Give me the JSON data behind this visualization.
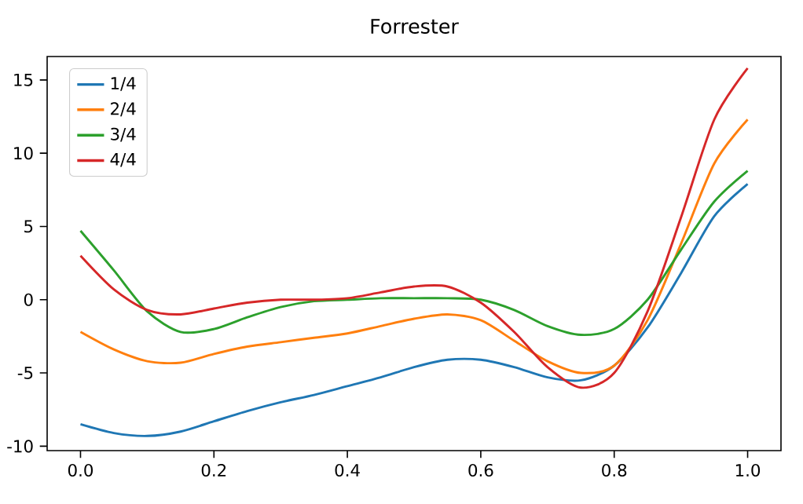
{
  "chart_data": {
    "type": "line",
    "title": "Forrester",
    "x": [
      0,
      0.05,
      0.1,
      0.15,
      0.2,
      0.25,
      0.3,
      0.35,
      0.4,
      0.45,
      0.5,
      0.55,
      0.6,
      0.65,
      0.7,
      0.75,
      0.8,
      0.85,
      0.9,
      0.95,
      1.0
    ],
    "series": [
      {
        "name": "1/4",
        "color": "#1f77b4",
        "values": [
          -8.5,
          -9.1,
          -9.3,
          -9.0,
          -8.3,
          -7.6,
          -7.0,
          -6.5,
          -5.9,
          -5.3,
          -4.6,
          -4.1,
          -4.1,
          -4.6,
          -5.3,
          -5.5,
          -4.5,
          -1.9,
          1.8,
          5.7,
          7.9
        ]
      },
      {
        "name": "2/4",
        "color": "#ff7f0e",
        "values": [
          -2.2,
          -3.4,
          -4.2,
          -4.3,
          -3.7,
          -3.2,
          -2.9,
          -2.6,
          -2.3,
          -1.8,
          -1.3,
          -1.0,
          -1.4,
          -2.8,
          -4.2,
          -5.0,
          -4.5,
          -1.4,
          3.8,
          9.3,
          12.3
        ]
      },
      {
        "name": "3/4",
        "color": "#2ca02c",
        "values": [
          4.7,
          2.0,
          -0.8,
          -2.2,
          -2.0,
          -1.2,
          -0.5,
          -0.1,
          0.0,
          0.1,
          0.1,
          0.1,
          0.0,
          -0.7,
          -1.8,
          -2.4,
          -2.0,
          0.0,
          3.4,
          6.7,
          8.8
        ]
      },
      {
        "name": "4/4",
        "color": "#d62728",
        "values": [
          3.0,
          0.7,
          -0.7,
          -1.0,
          -0.6,
          -0.2,
          0.0,
          0.0,
          0.1,
          0.5,
          0.9,
          0.9,
          -0.2,
          -2.2,
          -4.6,
          -6.0,
          -5.0,
          -0.8,
          5.6,
          12.3,
          15.8
        ]
      }
    ],
    "xlim": [
      -0.05,
      1.05
    ],
    "ylim": [
      -10.3,
      16.6
    ],
    "xticks": [
      {
        "value": 0,
        "label": "0.0"
      },
      {
        "value": 0.2,
        "label": "0.2"
      },
      {
        "value": 0.4,
        "label": "0.4"
      },
      {
        "value": 0.6,
        "label": "0.6"
      },
      {
        "value": 0.8,
        "label": "0.8"
      },
      {
        "value": 1.0,
        "label": "1.0"
      }
    ],
    "yticks": [
      -10,
      -5,
      0,
      5,
      10,
      15
    ],
    "legend": "top left",
    "grid": false,
    "marker": "none",
    "line_style": "solid"
  }
}
